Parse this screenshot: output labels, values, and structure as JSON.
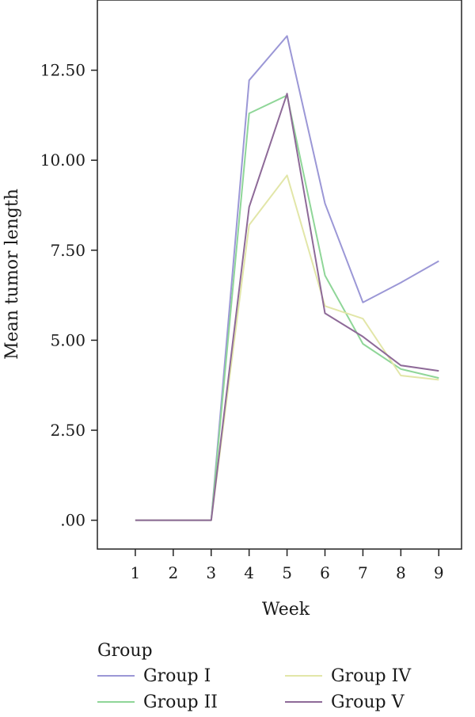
{
  "chart_data": {
    "type": "line",
    "title": "",
    "xlabel": "Week",
    "ylabel": "Mean tumor length",
    "x": [
      1,
      2,
      3,
      4,
      5,
      6,
      7,
      8,
      9
    ],
    "x_tick_labels": [
      "1",
      "2",
      "3",
      "4",
      "5",
      "6",
      "7",
      "8",
      "9"
    ],
    "xlim": [
      0.0,
      9.6
    ],
    "ylim": [
      -0.8,
      14.45
    ],
    "y_ticks": [
      0,
      2.5,
      5,
      7.5,
      10,
      12.5
    ],
    "y_tick_labels": [
      ".00",
      "2.50",
      "5.00",
      "7.50",
      "10.00",
      "12.50"
    ],
    "grid": false,
    "legend": {
      "title": "Group",
      "position": "bottom"
    },
    "series": [
      {
        "name": "Group I",
        "color": "#9b97d6",
        "values": [
          0,
          0,
          0,
          12.22,
          13.45,
          8.8,
          6.05,
          6.6,
          7.2
        ]
      },
      {
        "name": "Group II",
        "color": "#8fd698",
        "values": [
          0,
          0,
          0,
          11.3,
          11.8,
          6.8,
          4.9,
          4.2,
          3.95
        ]
      },
      {
        "name": "Group IV",
        "color": "#e2e6a8",
        "values": [
          0,
          0,
          0,
          8.2,
          9.58,
          5.95,
          5.6,
          4.02,
          3.9
        ]
      },
      {
        "name": "Group V",
        "color": "#8e6a98",
        "values": [
          0,
          0,
          0,
          8.7,
          11.85,
          5.75,
          5.1,
          4.3,
          4.15
        ]
      }
    ]
  }
}
